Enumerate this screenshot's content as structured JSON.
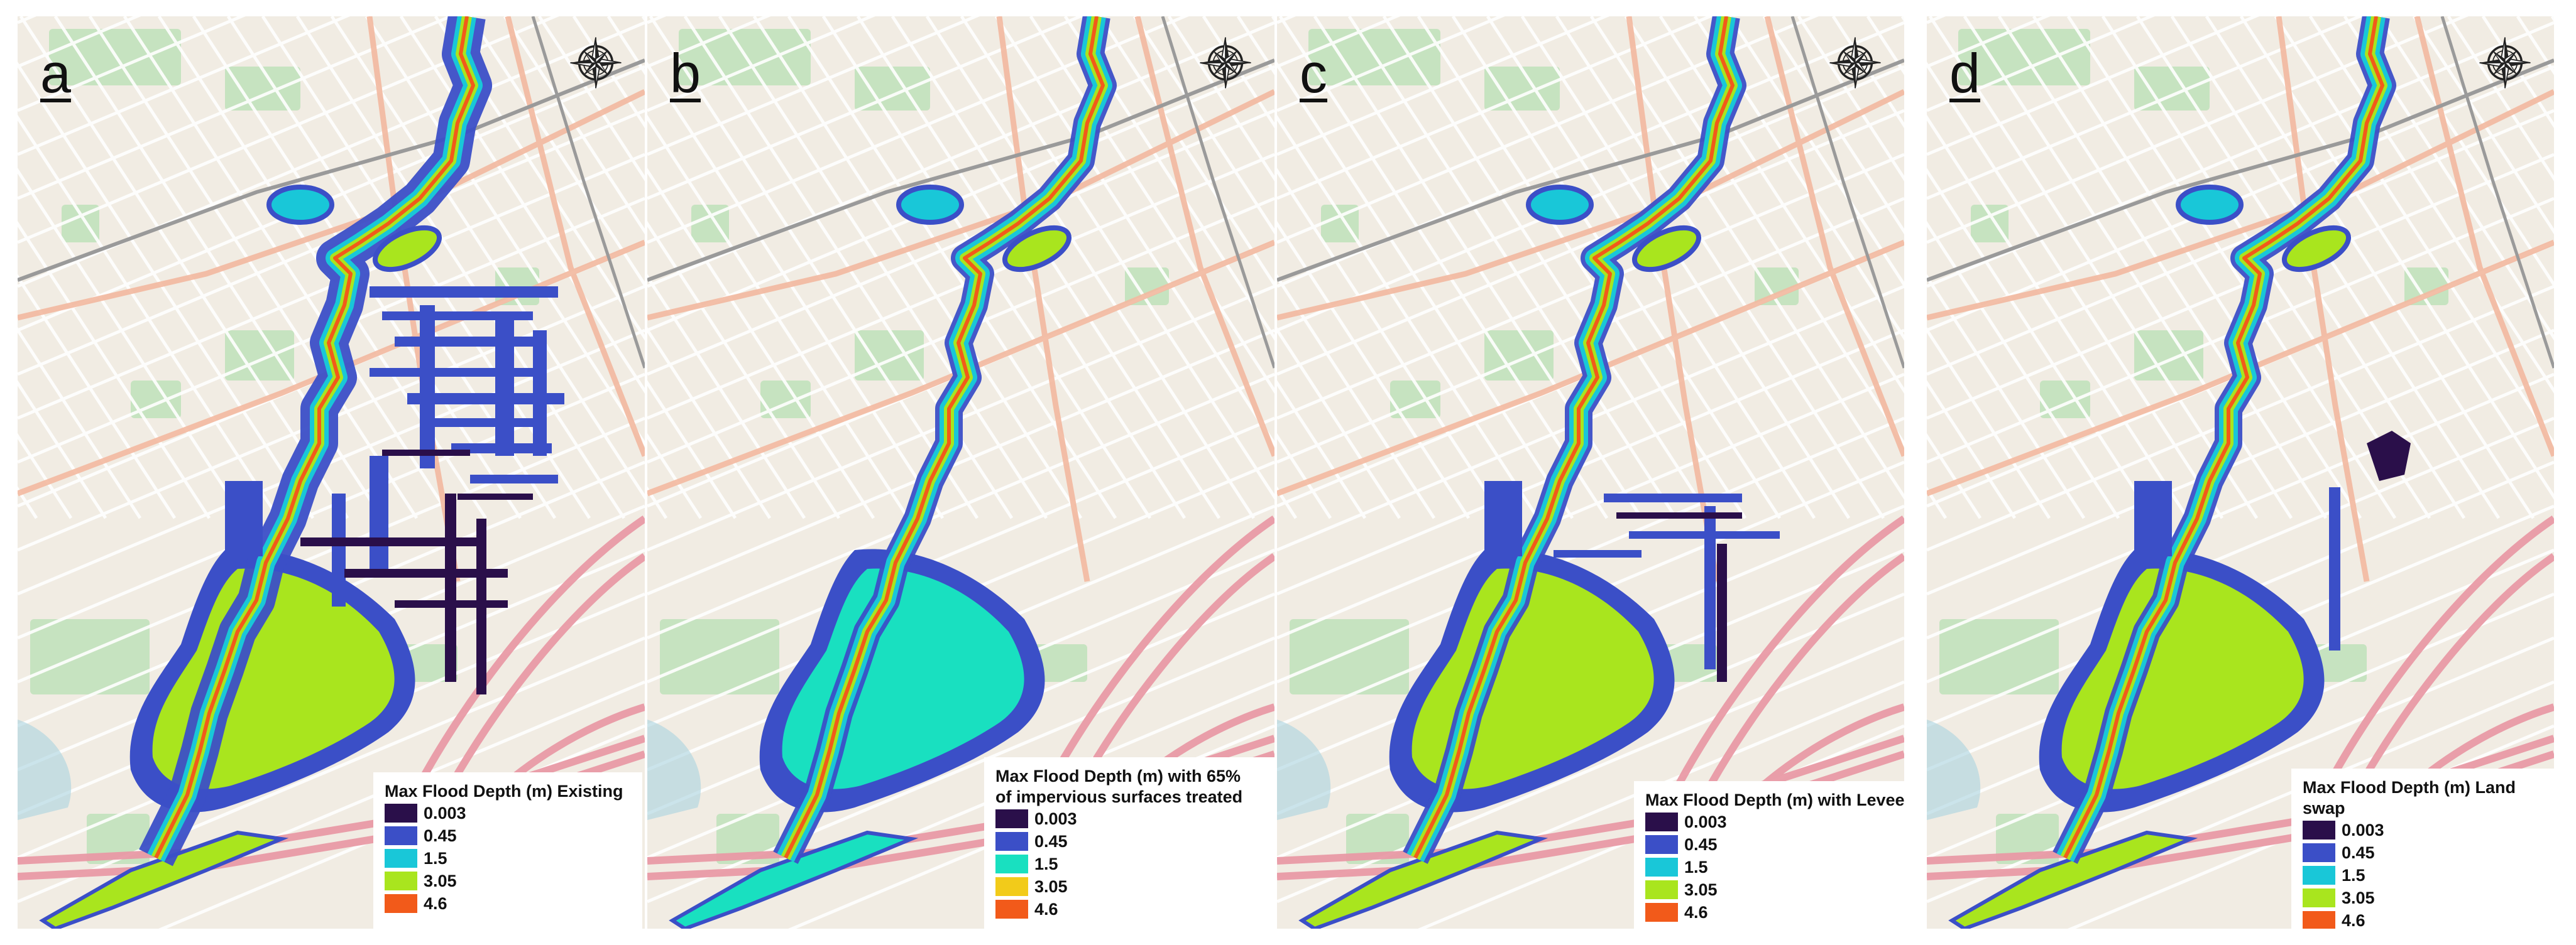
{
  "panels": [
    {
      "letter": "a",
      "legend_title": "Max Flood Depth (m) Existing"
    },
    {
      "letter": "b",
      "legend_title": "Max Flood Depth (m) with 65%\nof impervious surfaces treated"
    },
    {
      "letter": "c",
      "legend_title": "Max Flood Depth (m) with Levee"
    },
    {
      "letter": "d",
      "legend_title": "Max Flood Depth (m) Land swap"
    }
  ],
  "legend_classes": [
    {
      "label": "0.003",
      "color": "#2a0f4a"
    },
    {
      "label": "0.45",
      "color": "#3b4fc7"
    },
    {
      "label": "1.5",
      "color": "#19c7d8"
    },
    {
      "label": "3.05",
      "color": "#a9e51e"
    },
    {
      "label": "4.6",
      "color": "#f25a1a"
    }
  ],
  "legend_classes_b": [
    {
      "label": "0.003",
      "color": "#2a0f4a"
    },
    {
      "label": "0.45",
      "color": "#3b4fc7"
    },
    {
      "label": "1.5",
      "color": "#19e0c0"
    },
    {
      "label": "3.05",
      "color": "#f2cb1a"
    },
    {
      "label": "4.6",
      "color": "#f25a1a"
    }
  ],
  "icons": {
    "compass": "compass-rose-icon"
  },
  "map_colors": {
    "base": "#f1ece3",
    "park": "#c6e3c0",
    "road_major": "#f3b9a0",
    "road_minor": "#ffffff",
    "highway": "#e99aa6",
    "rail": "#9a9a9a",
    "water": "#aad3df"
  }
}
